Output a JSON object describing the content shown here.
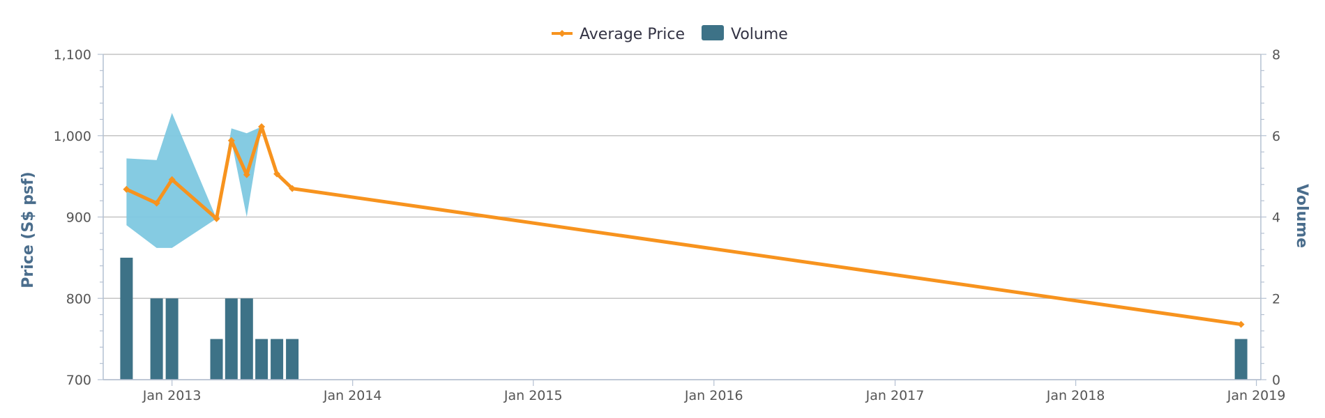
{
  "chart_data": {
    "type": "line",
    "legend": {
      "placement": "top-center",
      "items": [
        {
          "name": "Average Price",
          "color": "#f7931e",
          "symbol": "line-diamond"
        },
        {
          "name": "Volume",
          "color": "#3d7287",
          "symbol": "box"
        }
      ]
    },
    "y_left": {
      "label": "Price (S$ psf)",
      "range": [
        700,
        1100
      ],
      "ticks": [
        700,
        800,
        900,
        1000,
        1100
      ],
      "tick_labels": [
        "700",
        "800",
        "900",
        "1,000",
        "1,100"
      ]
    },
    "y_right": {
      "label": "Volume",
      "range": [
        0,
        8
      ],
      "ticks": [
        0,
        2,
        4,
        6,
        8
      ],
      "tick_labels": [
        "0",
        "2",
        "4",
        "6",
        "8"
      ]
    },
    "x_axis": {
      "type": "date",
      "range": [
        "2012-08-15",
        "2019-01-10"
      ],
      "ticks": [
        "2013-01-01",
        "2014-01-01",
        "2015-01-01",
        "2016-01-01",
        "2017-01-01",
        "2018-01-01",
        "2019-01-01"
      ],
      "tick_labels": [
        "Jan 2013",
        "Jan 2014",
        "Jan 2015",
        "Jan 2016",
        "Jan 2017",
        "Jan 2018",
        "Jan 2019"
      ]
    },
    "grid": "horizontal",
    "series": [
      {
        "name": "Average Price",
        "type": "line",
        "axis": "left",
        "color": "#f7931e",
        "points": [
          {
            "date": "2012-10-01",
            "value": 934
          },
          {
            "date": "2012-12-01",
            "value": 917
          },
          {
            "date": "2013-01-01",
            "value": 946
          },
          {
            "date": "2013-04-01",
            "value": 898
          },
          {
            "date": "2013-05-01",
            "value": 994
          },
          {
            "date": "2013-06-01",
            "value": 952
          },
          {
            "date": "2013-07-01",
            "value": 1011
          },
          {
            "date": "2013-08-01",
            "value": 953
          },
          {
            "date": "2013-09-01",
            "value": 935
          },
          {
            "date": "2018-12-01",
            "value": 768
          }
        ]
      },
      {
        "name": "Price Range",
        "type": "arearange",
        "axis": "left",
        "color": "#7ec8e0",
        "points": [
          {
            "date": "2012-10-01",
            "low": 890,
            "high": 972
          },
          {
            "date": "2012-12-01",
            "low": 862,
            "high": 970
          },
          {
            "date": "2013-01-01",
            "low": 862,
            "high": 1028
          },
          {
            "date": "2013-04-01",
            "low": 898,
            "high": 898
          },
          {
            "date": "2013-05-01",
            "low": 994,
            "high": 1009
          },
          {
            "date": "2013-06-01",
            "low": 900,
            "high": 1003
          },
          {
            "date": "2013-07-01",
            "low": 1011,
            "high": 1011
          }
        ]
      },
      {
        "name": "Volume",
        "type": "column",
        "axis": "right",
        "color": "#3d7287",
        "points": [
          {
            "date": "2012-10-01",
            "value": 3
          },
          {
            "date": "2012-12-01",
            "value": 2
          },
          {
            "date": "2013-01-01",
            "value": 2
          },
          {
            "date": "2013-04-01",
            "value": 1
          },
          {
            "date": "2013-05-01",
            "value": 2
          },
          {
            "date": "2013-06-01",
            "value": 2
          },
          {
            "date": "2013-07-01",
            "value": 1
          },
          {
            "date": "2013-08-01",
            "value": 1
          },
          {
            "date": "2013-09-01",
            "value": 1
          },
          {
            "date": "2018-12-01",
            "value": 1
          }
        ]
      }
    ]
  }
}
